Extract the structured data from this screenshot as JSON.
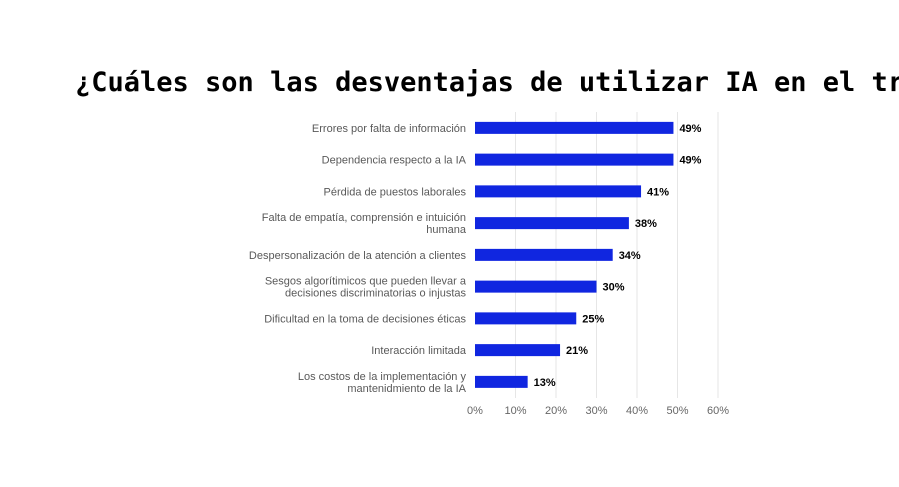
{
  "chart_data": {
    "type": "bar",
    "orientation": "horizontal",
    "title": "¿Cuáles son las desventajas de utilizar IA en el trabajo?",
    "categories": [
      "Errores por falta de información",
      "Dependencia respecto a la IA",
      "Pérdida de puestos laborales",
      "Falta de empatía, comprensión e intuición humana",
      "Despersonalización de la atención a clientes",
      "Sesgos algorítimicos que pueden llevar a decisiones discriminatorias o injustas",
      "Dificultad en la toma de decisiones éticas",
      "Interacción limitada",
      "Los costos de la implementación y mantenidmiento de la IA"
    ],
    "category_lines": [
      [
        "Errores por falta de información"
      ],
      [
        "Dependencia respecto a la IA"
      ],
      [
        "Pérdida de puestos laborales"
      ],
      [
        "Falta de empatía, comprensión e intuición",
        "humana"
      ],
      [
        "Despersonalización de la atención a clientes"
      ],
      [
        "Sesgos algorítimicos que pueden llevar a",
        "decisiones discriminatorias o injustas"
      ],
      [
        "Dificultad en la toma de decisiones éticas"
      ],
      [
        "Interacción limitada"
      ],
      [
        "Los costos de la implementación y",
        "mantenidmiento de la IA"
      ]
    ],
    "values": [
      49,
      49,
      41,
      38,
      34,
      30,
      25,
      21,
      13
    ],
    "value_labels": [
      "49%",
      "49%",
      "41%",
      "38%",
      "34%",
      "30%",
      "25%",
      "21%",
      "13%"
    ],
    "xlim": [
      0,
      60
    ],
    "xticks": [
      0,
      10,
      20,
      30,
      40,
      50,
      60
    ],
    "xtick_labels": [
      "0%",
      "10%",
      "20%",
      "30%",
      "40%",
      "50%",
      "60%"
    ],
    "xlabel": "",
    "ylabel": "",
    "grid": true,
    "legend": "none",
    "bar_color": "#1026e0"
  }
}
